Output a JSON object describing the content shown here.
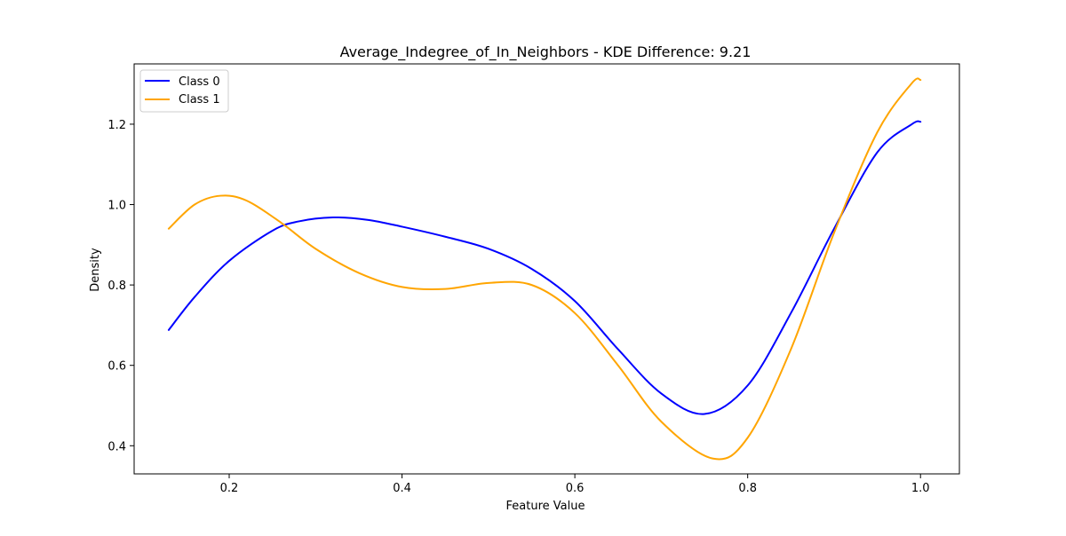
{
  "chart_data": {
    "type": "line",
    "title": "Average_Indegree_of_In_Neighbors - KDE Difference: 9.21",
    "xlabel": "Feature Value",
    "ylabel": "Density",
    "xlim": [
      0.09,
      1.045
    ],
    "ylim": [
      0.33,
      1.35
    ],
    "xticks": [
      0.2,
      0.4,
      0.6,
      0.8,
      1.0
    ],
    "xtick_labels": [
      "0.2",
      "0.4",
      "0.6",
      "0.8",
      "1.0"
    ],
    "yticks": [
      0.4,
      0.6,
      0.8,
      1.0,
      1.2
    ],
    "ytick_labels": [
      "0.4",
      "0.6",
      "0.8",
      "1.0",
      "1.2"
    ],
    "grid": false,
    "legend_position": "top-left",
    "series": [
      {
        "name": "Class 0",
        "color": "#0000ff",
        "x": [
          0.13,
          0.16,
          0.2,
          0.25,
          0.28,
          0.32,
          0.36,
          0.4,
          0.45,
          0.5,
          0.55,
          0.6,
          0.65,
          0.7,
          0.75,
          0.8,
          0.85,
          0.9,
          0.95,
          0.99,
          1.0
        ],
        "y": [
          0.688,
          0.77,
          0.86,
          0.935,
          0.958,
          0.968,
          0.962,
          0.945,
          0.92,
          0.89,
          0.84,
          0.76,
          0.64,
          0.53,
          0.479,
          0.55,
          0.73,
          0.94,
          1.13,
          1.2,
          1.206
        ]
      },
      {
        "name": "Class 1",
        "color": "#ffa500",
        "x": [
          0.13,
          0.16,
          0.19,
          0.22,
          0.26,
          0.3,
          0.35,
          0.4,
          0.45,
          0.5,
          0.55,
          0.6,
          0.65,
          0.7,
          0.76,
          0.8,
          0.85,
          0.9,
          0.95,
          0.99,
          1.0
        ],
        "y": [
          0.94,
          1.0,
          1.022,
          1.01,
          0.955,
          0.89,
          0.83,
          0.795,
          0.79,
          0.805,
          0.8,
          0.73,
          0.6,
          0.46,
          0.368,
          0.42,
          0.64,
          0.93,
          1.18,
          1.302,
          1.31
        ]
      }
    ]
  }
}
